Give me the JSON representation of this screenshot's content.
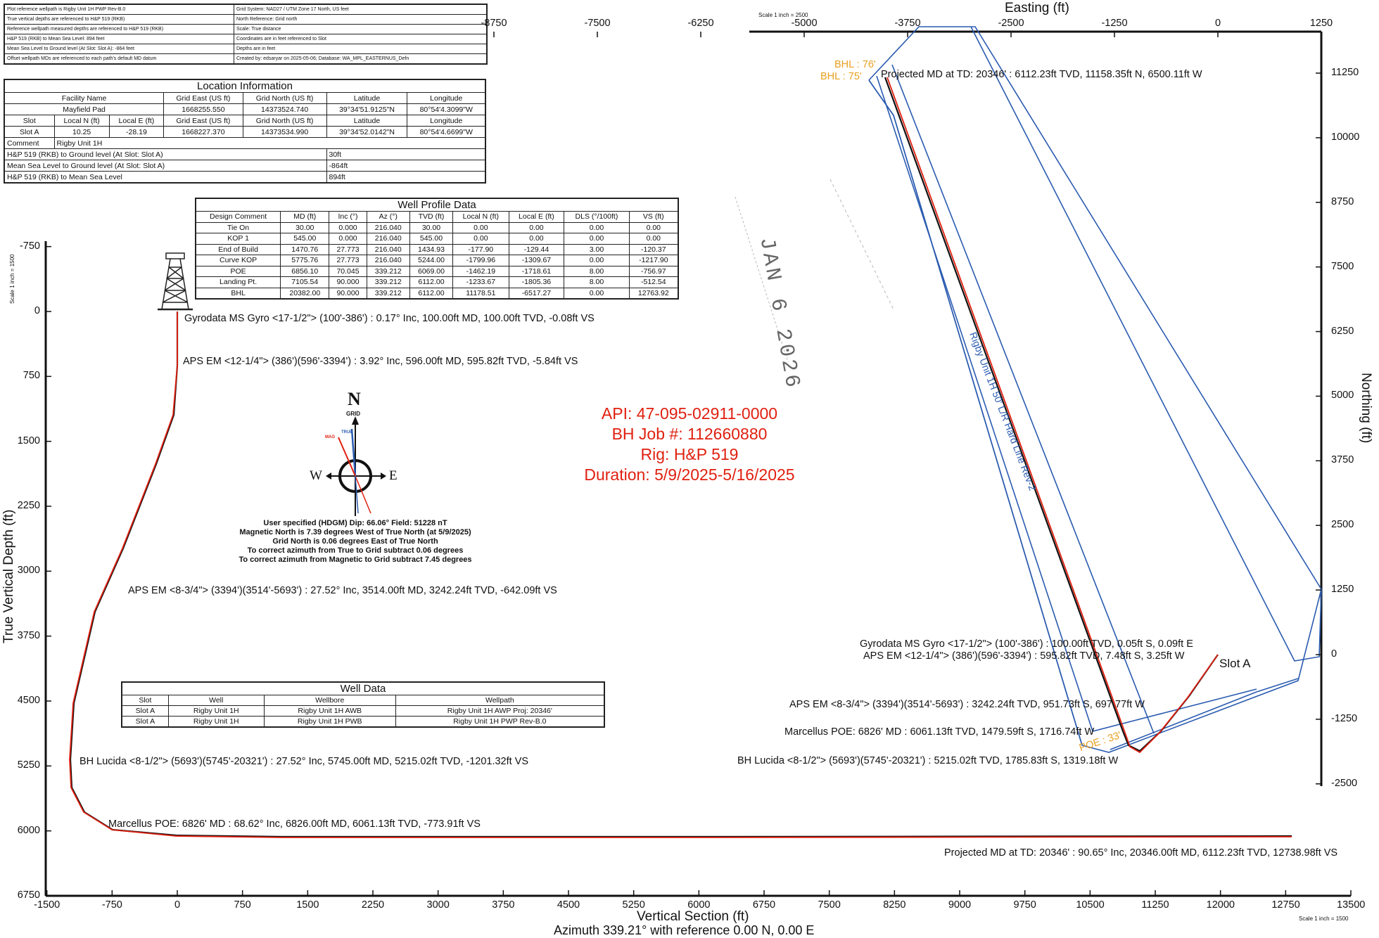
{
  "header_table": {
    "left": [
      "Plot reference wellpath is Rigby Unit 1H PWP Rev-B.0",
      "True vertical depths are referenced to H&P 519 (RKB)",
      "Reference wellpath measured depths are referenced to H&P 519 (RKB)",
      "H&P 519 (RKB) to Mean Sea Level: 894 feet",
      "Mean Sea Level to Ground level (At Slot: Slot A): -864 feet",
      "Offset wellpath MDs are referenced to each path's default MD datum"
    ],
    "right": [
      "Grid System: NAD27 / UTM Zone 17 North, US feet",
      "North Reference: Grid north",
      "Scale: True distance",
      "Coordinates are in feet referenced to Slot",
      "Depths are in feet",
      "Created by: edsaryar on 2025-05-06; Database: WA_MPL_EASTERNUS_Defn"
    ]
  },
  "location_info": {
    "title": "Location Information",
    "facility_headers": [
      "Facility Name",
      "Grid East (US ft)",
      "Grid North (US ft)",
      "Latitude",
      "Longitude"
    ],
    "facility_row": [
      "Mayfield Pad",
      "1668255.550",
      "14373524.740",
      "39°34'51.9125\"N",
      "80°54'4.3099\"W"
    ],
    "slot_headers": [
      "Slot",
      "Local N (ft)",
      "Local E (ft)",
      "Grid East (US ft)",
      "Grid North (US ft)",
      "Latitude",
      "Longitude"
    ],
    "slot_row": [
      "Slot A",
      "10.25",
      "-28.19",
      "1668227.370",
      "14373534.990",
      "39°34'52.0142\"N",
      "80°54'4.6699\"W"
    ],
    "comment_label": "Comment",
    "comment_value": "Rigby Unit 1H",
    "levels": [
      {
        "label": "H&P 519 (RKB) to Ground level (At Slot: Slot A)",
        "value": "30ft"
      },
      {
        "label": "Mean Sea Level to Ground level (At Slot: Slot A)",
        "value": "-864ft"
      },
      {
        "label": "H&P 519 (RKB) to Mean Sea Level",
        "value": "894ft"
      }
    ]
  },
  "well_profile": {
    "title": "Well Profile Data",
    "headers": [
      "Design Comment",
      "MD (ft)",
      "Inc (°)",
      "Az (°)",
      "TVD (ft)",
      "Local N (ft)",
      "Local E (ft)",
      "DLS (°/100ft)",
      "VS (ft)"
    ],
    "rows": [
      [
        "Tie On",
        "30.00",
        "0.000",
        "216.040",
        "30.00",
        "0.00",
        "0.00",
        "0.00",
        "0.00"
      ],
      [
        "KOP 1",
        "545.00",
        "0.000",
        "216.040",
        "545.00",
        "0.00",
        "0.00",
        "0.00",
        "0.00"
      ],
      [
        "End of Build",
        "1470.76",
        "27.773",
        "216.040",
        "1434.93",
        "-177.90",
        "-129.44",
        "3.00",
        "-120.37"
      ],
      [
        "Curve KOP",
        "5775.76",
        "27.773",
        "216.040",
        "5244.00",
        "-1799.96",
        "-1309.67",
        "0.00",
        "-1217.90"
      ],
      [
        "POE",
        "6856.10",
        "70.045",
        "339.212",
        "6069.00",
        "-1462.19",
        "-1718.61",
        "8.00",
        "-756.97"
      ],
      [
        "Landing Pt.",
        "7105.54",
        "90.000",
        "339.212",
        "6112.00",
        "-1233.67",
        "-1805.36",
        "8.00",
        "-512.54"
      ],
      [
        "BHL",
        "20382.00",
        "90.000",
        "339.212",
        "6112.00",
        "11178.51",
        "-6517.27",
        "0.00",
        "12763.92"
      ]
    ]
  },
  "well_data": {
    "title": "Well Data",
    "headers": [
      "Slot",
      "Well",
      "Wellbore",
      "Wellpath"
    ],
    "rows": [
      [
        "Slot A",
        "Rigby Unit 1H",
        "Rigby Unit 1H AWB",
        "Rigby Unit 1H AWP Proj: 20346'"
      ],
      [
        "Slot A",
        "Rigby Unit 1H",
        "Rigby Unit 1H PWB",
        "Rigby Unit 1H PWP Rev-B.0"
      ]
    ]
  },
  "job_info": {
    "api": "API: 47-095-02911-0000",
    "job": "BH Job #: 112660880",
    "rig": "Rig: H&P 519",
    "duration": "Duration: 5/9/2025-5/16/2025"
  },
  "compass": {
    "n": "N",
    "grid": "GRID",
    "true": "TRUE",
    "mag": "MAG",
    "w": "W",
    "e": "E",
    "notes": [
      "User specified (HDGM) Dip: 66.06°  Field: 51228 nT",
      "Magnetic North is 7.39 degrees West of True North (at 5/9/2025)",
      "Grid North is 0.06 degrees East of True North",
      "To correct azimuth from True to Grid subtract 0.06 degrees",
      "To correct azimuth from Magnetic to Grid subtract 7.45 degrees"
    ]
  },
  "section_view": {
    "x_title": "Vertical Section (ft)",
    "x_sub": "Azimuth 339.21° with reference 0.00 N, 0.00 E",
    "y_title": "True Vertical Depth (ft)",
    "scale_note": "Scale 1 inch = 1500",
    "x_ticks": [
      "-1500",
      "-750",
      "0",
      "750",
      "1500",
      "2250",
      "3000",
      "3750",
      "4500",
      "5250",
      "6000",
      "6750",
      "7500",
      "8250",
      "9000",
      "9750",
      "10500",
      "11250",
      "12000",
      "12750",
      "13500"
    ],
    "y_ticks": [
      "-750",
      "0",
      "750",
      "1500",
      "2250",
      "3000",
      "3750",
      "4500",
      "5250",
      "6000",
      "6750"
    ],
    "annotations": [
      "Gyrodata MS Gyro <17-1/2\"> (100'-386') : 0.17° Inc, 100.00ft MD, 100.00ft TVD, -0.08ft VS",
      "APS EM <12-1/4\"> (386')(596'-3394') : 3.92° Inc, 596.00ft MD, 595.82ft TVD, -5.84ft VS",
      "APS EM <8-3/4\"> (3394')(3514'-5693') : 27.52° Inc, 3514.00ft MD, 3242.24ft TVD, -642.09ft VS",
      "BH Lucida <8-1/2\"> (5693')(5745'-20321') : 27.52° Inc, 5745.00ft MD, 5215.02ft TVD, -1201.32ft VS",
      "Marcellus POE: 6826' MD : 68.62° Inc, 6826.00ft MD, 6061.13ft TVD, -773.91ft VS",
      "Projected MD at TD: 20346' : 90.65° Inc, 20346.00ft MD, 6112.23ft TVD, 12738.98ft VS"
    ]
  },
  "plan_view": {
    "x_title": "Easting (ft)",
    "y_title": "Northing (ft)",
    "scale_note": "Scale 1 inch = 2500",
    "x_ticks": [
      "-8750",
      "-7500",
      "-6250",
      "-5000",
      "-3750",
      "-2500",
      "-1250",
      "0",
      "1250"
    ],
    "y_ticks": [
      "11250",
      "10000",
      "8750",
      "7500",
      "6250",
      "5000",
      "3750",
      "2500",
      "1250",
      "0",
      "-1250",
      "-2500"
    ],
    "hard_line_label": "Rigby Unit 1H 50' L/R Hard Line Rev-2",
    "bhl_labels": [
      "BHL : 76'",
      "BHL : 75'"
    ],
    "poe_label": "POE : 33'",
    "slot_label": "Slot A",
    "annotations": [
      "Projected MD at TD: 20346' : 6112.23ft TVD, 11158.35ft N, 6500.11ft W",
      "Gyrodata MS Gyro <17-1/2\"> (100'-386') : 100.00ft TVD, 0.05ft S, 0.09ft E",
      "APS EM <12-1/4\"> (386')(596'-3394') : 595.82ft TVD, 7.48ft S, 3.25ft W",
      "APS EM <8-3/4\"> (3394')(3514'-5693') : 3242.24ft TVD, 951.73ft S, 697.77ft W",
      "Marcellus POE: 6826' MD : 6061.13ft TVD, 1479.59ft S, 1716.74ft W",
      "BH Lucida <8-1/2\"> (5693')(5745'-20321') : 5215.02ft TVD, 1785.83ft S, 1319.18ft W"
    ]
  },
  "stamp": {
    "date": "JAN 6 2026"
  },
  "colors": {
    "wellpath_red": "#e02010",
    "hardline_blue": "#2a5bb0",
    "label_orange": "#e8a020"
  }
}
